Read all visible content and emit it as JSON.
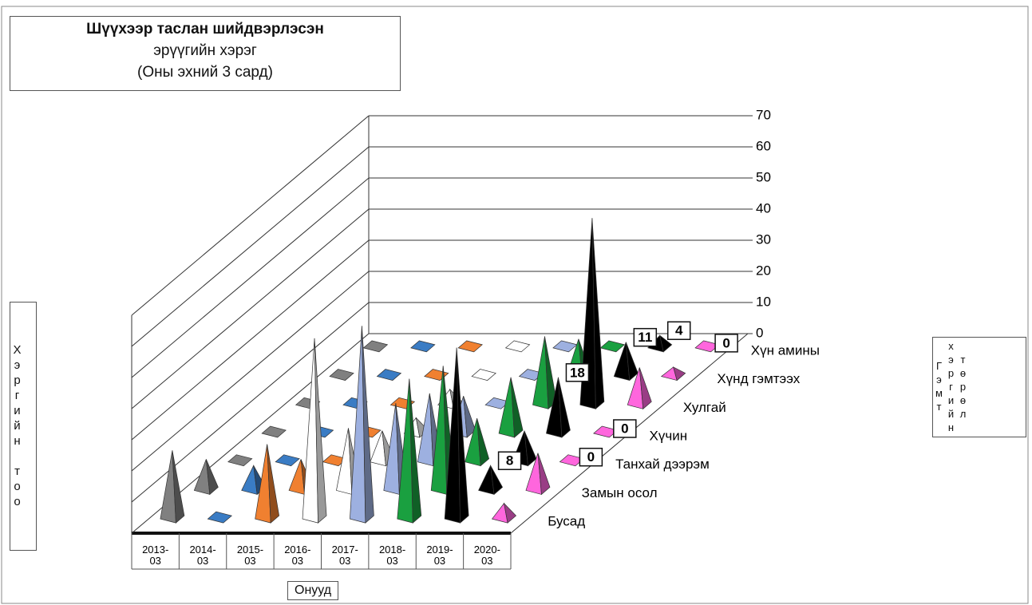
{
  "chart_data": {
    "type": "pyramid3d",
    "title": [
      "Шүүхээр таслан шийдвэрлэсэн",
      "эрүүгийн хэрэг",
      "(Оны эхний 3 сард)"
    ],
    "x_label": "Онууд",
    "y_label": "Хэргийн тоо",
    "legend_title": "Гэмт хэргийн төрөл",
    "categories": [
      "2013-03",
      "2014-03",
      "2015-03",
      "2016-03",
      "2017-03",
      "2018-03",
      "2019-03",
      "2020-03"
    ],
    "colors": [
      "#808080",
      "#3a7cc4",
      "#f08030",
      "#ffffff",
      "#9db0e0",
      "#1aa040",
      "#000000",
      "#ff66dd"
    ],
    "series": [
      {
        "name": "Хүн амины",
        "values": [
          0,
          0,
          0,
          0,
          0,
          0,
          4,
          0
        ],
        "value_labels": [
          null,
          null,
          null,
          null,
          null,
          null,
          "4",
          "0"
        ]
      },
      {
        "name": "Хүнд гэмтээх",
        "values": [
          0,
          0,
          0,
          0,
          0,
          12,
          11,
          3
        ],
        "value_labels": [
          null,
          null,
          null,
          null,
          null,
          null,
          "11",
          null
        ]
      },
      {
        "name": "Хулгай",
        "values": [
          0,
          0,
          0,
          5,
          0,
          22,
          60,
          12
        ],
        "value_labels": [
          null,
          null,
          null,
          null,
          null,
          null,
          null,
          null
        ]
      },
      {
        "name": "Хүчин",
        "values": [
          0,
          0,
          0,
          5,
          12,
          18,
          18,
          0
        ],
        "value_labels": [
          null,
          null,
          null,
          null,
          null,
          null,
          "18",
          "0"
        ]
      },
      {
        "name": "Танхай дээрэм",
        "values": [
          0,
          0,
          0,
          10,
          22,
          14,
          10,
          0
        ],
        "value_labels": [
          null,
          null,
          null,
          null,
          null,
          null,
          null,
          "0"
        ]
      },
      {
        "name": "Замын осол",
        "values": [
          10,
          8,
          10,
          20,
          28,
          40,
          8,
          12
        ],
        "value_labels": [
          null,
          null,
          null,
          null,
          null,
          null,
          "8",
          null
        ]
      },
      {
        "name": "Бусад",
        "values": [
          22,
          0,
          24,
          58,
          62,
          45,
          55,
          5
        ],
        "value_labels": [
          null,
          null,
          null,
          null,
          null,
          null,
          null,
          null
        ]
      }
    ],
    "ylim": [
      0,
      70
    ],
    "yticks": [
      0,
      10,
      20,
      30,
      40,
      50,
      60,
      70
    ],
    "grid": true
  }
}
